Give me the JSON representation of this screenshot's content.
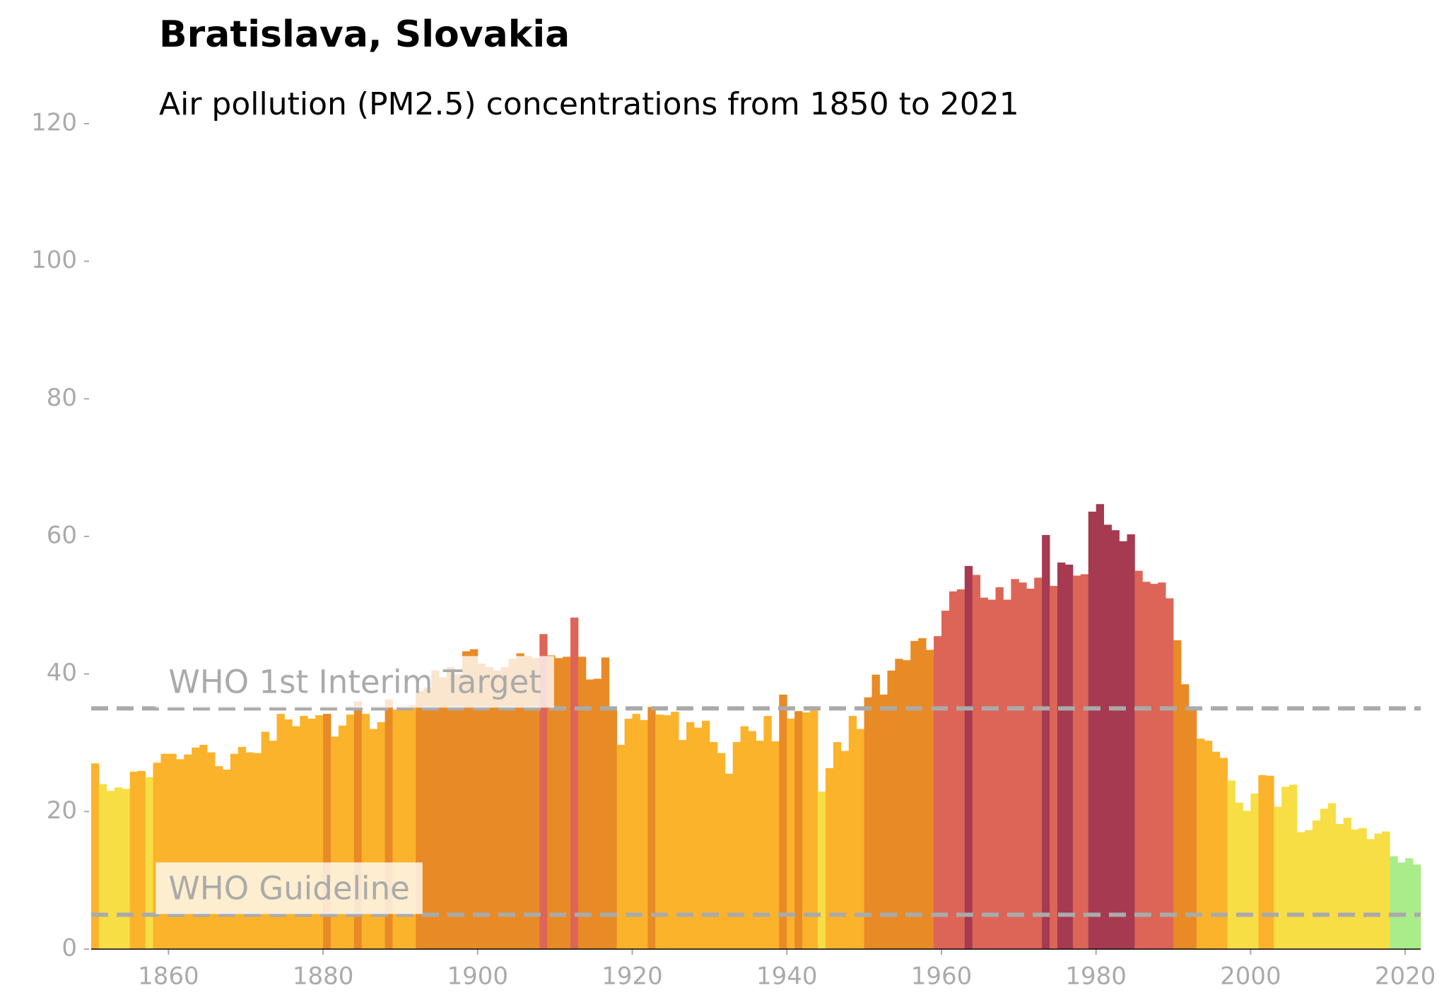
{
  "chart_data": {
    "type": "bar",
    "title": "Bratislava, Slovakia",
    "subtitle": "Air pollution (PM2.5) concentrations from 1850 to 2021",
    "x": [
      1850,
      1851,
      1852,
      1853,
      1854,
      1855,
      1856,
      1857,
      1858,
      1859,
      1860,
      1861,
      1862,
      1863,
      1864,
      1865,
      1866,
      1867,
      1868,
      1869,
      1870,
      1871,
      1872,
      1873,
      1874,
      1875,
      1876,
      1877,
      1878,
      1879,
      1880,
      1881,
      1882,
      1883,
      1884,
      1885,
      1886,
      1887,
      1888,
      1889,
      1890,
      1891,
      1892,
      1893,
      1894,
      1895,
      1896,
      1897,
      1898,
      1899,
      1900,
      1901,
      1902,
      1903,
      1904,
      1905,
      1906,
      1907,
      1908,
      1909,
      1910,
      1911,
      1912,
      1913,
      1914,
      1915,
      1916,
      1917,
      1918,
      1919,
      1920,
      1921,
      1922,
      1923,
      1924,
      1925,
      1926,
      1927,
      1928,
      1929,
      1930,
      1931,
      1932,
      1933,
      1934,
      1935,
      1936,
      1937,
      1938,
      1939,
      1940,
      1941,
      1942,
      1943,
      1944,
      1945,
      1946,
      1947,
      1948,
      1949,
      1950,
      1951,
      1952,
      1953,
      1954,
      1955,
      1956,
      1957,
      1958,
      1959,
      1960,
      1961,
      1962,
      1963,
      1964,
      1965,
      1966,
      1967,
      1968,
      1969,
      1970,
      1971,
      1972,
      1973,
      1974,
      1975,
      1976,
      1977,
      1978,
      1979,
      1980,
      1981,
      1982,
      1983,
      1984,
      1985,
      1986,
      1987,
      1988,
      1989,
      1990,
      1991,
      1992,
      1993,
      1994,
      1995,
      1996,
      1997,
      1998,
      1999,
      2000,
      2001,
      2002,
      2003,
      2004,
      2005,
      2006,
      2007,
      2008,
      2009,
      2010,
      2011,
      2012,
      2013,
      2014,
      2015,
      2016,
      2017,
      2018,
      2019,
      2020,
      2021
    ],
    "values": [
      27,
      24,
      23,
      23.5,
      23.3,
      25.8,
      25.9,
      25,
      27.1,
      28.4,
      28.4,
      27.6,
      28.3,
      29.3,
      29.7,
      28.6,
      26.6,
      26.1,
      28.4,
      29.4,
      28.6,
      28.5,
      31.6,
      30.3,
      34.2,
      33.4,
      32.4,
      33.9,
      33.5,
      34,
      34.2,
      30.9,
      32.5,
      34.1,
      36,
      34.2,
      32,
      33,
      36.3,
      34.8,
      35,
      35.5,
      37.5,
      38,
      40.5,
      39.5,
      41,
      40,
      43.3,
      43.6,
      41.5,
      41,
      40.5,
      41,
      42.2,
      43,
      42.6,
      42.3,
      45.8,
      42.7,
      42.3,
      42.5,
      48.2,
      42.5,
      39.2,
      39.3,
      42.4,
      34.8,
      29.7,
      33.5,
      34.2,
      33.3,
      35.2,
      34.1,
      34,
      34.5,
      30.4,
      33,
      32.2,
      33.2,
      30.1,
      28.5,
      25.5,
      30.1,
      32.4,
      31.7,
      30.3,
      33.9,
      30.2,
      37,
      33.5,
      34.6,
      34.4,
      34.7,
      22.9,
      26.3,
      30.1,
      28.8,
      33.9,
      32,
      36.6,
      39.9,
      37,
      40.5,
      42.2,
      42,
      44.8,
      45.2,
      43.5,
      45.5,
      49.2,
      52,
      52.3,
      55.7,
      54.4,
      51.1,
      50.8,
      52.6,
      50.8,
      53.8,
      53.3,
      52.4,
      54,
      60.2,
      52.8,
      56.2,
      55.9,
      54.3,
      54.5,
      63.6,
      64.7,
      61.7,
      60.9,
      59.3,
      60.3,
      55,
      53.4,
      53.1,
      53.3,
      51,
      44.9,
      38.5,
      35,
      30.6,
      30.3,
      28.7,
      27.8,
      24.5,
      21.3,
      20.1,
      22.6,
      25.3,
      25.2,
      20.7,
      23.6,
      23.9,
      17,
      17.3,
      18.7,
      20.4,
      21.2,
      18.2,
      19.1,
      17.4,
      17.6,
      16,
      16.8,
      17.1,
      13.5,
      12.6,
      13.2,
      12.3
    ],
    "colors": [
      "#fbb32c",
      "#f8de45",
      "#f8de45",
      "#f8de45",
      "#f8de45",
      "#fbb32c",
      "#fbb32c",
      "#f8de45",
      "#fbb32c",
      "#fbb32c",
      "#fbb32c",
      "#fbb32c",
      "#fbb32c",
      "#fbb32c",
      "#fbb32c",
      "#fbb32c",
      "#fbb32c",
      "#fbb32c",
      "#fbb32c",
      "#fbb32c",
      "#fbb32c",
      "#fbb32c",
      "#fbb32c",
      "#fbb32c",
      "#fbb32c",
      "#fbb32c",
      "#fbb32c",
      "#fbb32c",
      "#fbb32c",
      "#fbb32c",
      "#e88a25",
      "#fbb32c",
      "#fbb32c",
      "#fbb32c",
      "#e88a25",
      "#fbb32c",
      "#fbb32c",
      "#fbb32c",
      "#e88a25",
      "#fbb32c",
      "#fbb32c",
      "#fbb32c",
      "#e88a25",
      "#e88a25",
      "#e88a25",
      "#e88a25",
      "#e88a25",
      "#e88a25",
      "#e88a25",
      "#e88a25",
      "#e88a25",
      "#e88a25",
      "#e88a25",
      "#e88a25",
      "#e88a25",
      "#e88a25",
      "#e88a25",
      "#e88a25",
      "#dc6557",
      "#e88a25",
      "#e88a25",
      "#e88a25",
      "#dc6557",
      "#e88a25",
      "#e88a25",
      "#e88a25",
      "#e88a25",
      "#e88a25",
      "#fbb32c",
      "#fbb32c",
      "#fbb32c",
      "#fbb32c",
      "#e88a25",
      "#fbb32c",
      "#fbb32c",
      "#fbb32c",
      "#fbb32c",
      "#fbb32c",
      "#fbb32c",
      "#fbb32c",
      "#fbb32c",
      "#fbb32c",
      "#fbb32c",
      "#fbb32c",
      "#fbb32c",
      "#fbb32c",
      "#fbb32c",
      "#fbb32c",
      "#fbb32c",
      "#e88a25",
      "#fbb32c",
      "#e88a25",
      "#fbb32c",
      "#fbb32c",
      "#f8de45",
      "#fbb32c",
      "#fbb32c",
      "#fbb32c",
      "#fbb32c",
      "#fbb32c",
      "#e88a25",
      "#e88a25",
      "#e88a25",
      "#e88a25",
      "#e88a25",
      "#e88a25",
      "#e88a25",
      "#e88a25",
      "#e88a25",
      "#dc6557",
      "#dc6557",
      "#dc6557",
      "#dc6557",
      "#a63a50",
      "#dc6557",
      "#dc6557",
      "#dc6557",
      "#dc6557",
      "#dc6557",
      "#dc6557",
      "#dc6557",
      "#dc6557",
      "#dc6557",
      "#a63a50",
      "#dc6557",
      "#a63a50",
      "#a63a50",
      "#dc6557",
      "#dc6557",
      "#a63a50",
      "#a63a50",
      "#a63a50",
      "#a63a50",
      "#a63a50",
      "#a63a50",
      "#dc6557",
      "#dc6557",
      "#dc6557",
      "#dc6557",
      "#dc6557",
      "#e88a25",
      "#e88a25",
      "#e88a25",
      "#fbb32c",
      "#fbb32c",
      "#fbb32c",
      "#fbb32c",
      "#f8de45",
      "#f8de45",
      "#f8de45",
      "#f8de45",
      "#fbb32c",
      "#fbb32c",
      "#f8de45",
      "#f8de45",
      "#f8de45",
      "#f8de45",
      "#f8de45",
      "#f8de45",
      "#f8de45",
      "#f8de45",
      "#f8de45",
      "#f8de45",
      "#f8de45",
      "#f8de45",
      "#f8de45",
      "#f8de45",
      "#f8de45",
      "#a9ec8a",
      "#a9ec8a",
      "#a9ec8a",
      "#a9ec8a"
    ],
    "xlim": [
      1850,
      2022
    ],
    "xticks": [
      1860,
      1880,
      1900,
      1920,
      1940,
      1960,
      1980,
      2000,
      2020
    ],
    "ylim": [
      0,
      120
    ],
    "yticks": [
      0,
      20,
      40,
      60,
      80,
      100,
      120
    ],
    "reference_lines": [
      {
        "label": "WHO 1st Interim Target",
        "value": 35
      },
      {
        "label": "WHO Guideline",
        "value": 5
      }
    ],
    "reference_color": "#aaaaaa"
  }
}
